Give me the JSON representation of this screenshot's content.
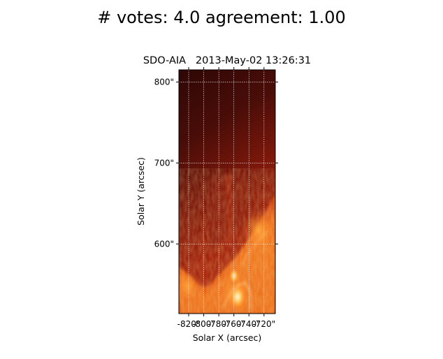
{
  "figure": {
    "suptitle": "# votes: 4.0 agreement: 1.00"
  },
  "chart_data": {
    "type": "heatmap",
    "title": "SDO-AIA   2013-May-02 13:26:31",
    "xlabel": "Solar X (arcsec)",
    "ylabel": "Solar Y (arcsec)",
    "xlim": [
      -833,
      -705
    ],
    "ylim": [
      514,
      815
    ],
    "x_ticks": [
      {
        "value": -820,
        "label": "-820\""
      },
      {
        "value": -800,
        "label": "-800\""
      },
      {
        "value": -780,
        "label": "-780\""
      },
      {
        "value": -760,
        "label": "-760\""
      },
      {
        "value": -740,
        "label": "-740\""
      },
      {
        "value": -720,
        "label": "-720\""
      }
    ],
    "y_ticks": [
      {
        "value": 800,
        "label": "800\""
      },
      {
        "value": 700,
        "label": "700\""
      },
      {
        "value": 600,
        "label": "600\""
      }
    ],
    "grid": true,
    "colormap": [
      "#3a0a08",
      "#7a1a0a",
      "#c0330f",
      "#e8641a",
      "#ffd070"
    ]
  }
}
